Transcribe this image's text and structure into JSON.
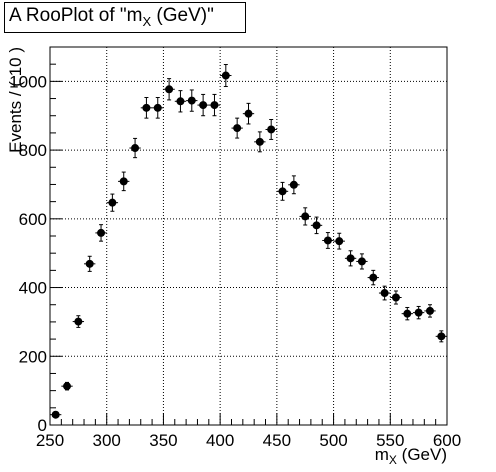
{
  "title": {
    "prefix": "A RooPlot of \"m",
    "sub": "X",
    "suffix": " (GeV)\""
  },
  "chart_data": {
    "type": "scatter",
    "title": "A RooPlot of \"m_X (GeV)\"",
    "xlabel": "m",
    "xlabel_sub": "X",
    "xlabel_suffix": " (GeV)",
    "ylabel": "Events / ( 10 )",
    "xlim": [
      250,
      600
    ],
    "ylim": [
      0,
      1100
    ],
    "grid": true,
    "x_bin_halfwidth": 5,
    "xticks": [
      250,
      300,
      350,
      400,
      450,
      500,
      550,
      600
    ],
    "yticks": [
      0,
      200,
      400,
      600,
      800,
      1000
    ],
    "ytick_labels": [
      "0",
      "200",
      "400",
      "600",
      "800",
      "1000"
    ],
    "series": [
      {
        "x": [
          255,
          265,
          275,
          285,
          295,
          305,
          315,
          325,
          335,
          345,
          355,
          365,
          375,
          385,
          395,
          405,
          415,
          425,
          435,
          445,
          455,
          465,
          475,
          485,
          495,
          505,
          515,
          525,
          535,
          545,
          555,
          565,
          575,
          585,
          595
        ],
        "y": [
          30,
          113,
          301,
          469,
          559,
          647,
          709,
          806,
          923,
          923,
          977,
          942,
          944,
          931,
          931,
          1017,
          864,
          906,
          824,
          860,
          680,
          699,
          607,
          581,
          537,
          535,
          485,
          476,
          429,
          384,
          371,
          324,
          327,
          332,
          258
        ],
        "err": [
          6,
          11,
          17,
          22,
          24,
          25,
          27,
          28,
          30,
          30,
          31,
          31,
          31,
          31,
          31,
          32,
          29,
          30,
          29,
          29,
          26,
          26,
          25,
          24,
          23,
          23,
          22,
          22,
          21,
          20,
          19,
          18,
          18,
          18,
          16
        ]
      }
    ]
  }
}
